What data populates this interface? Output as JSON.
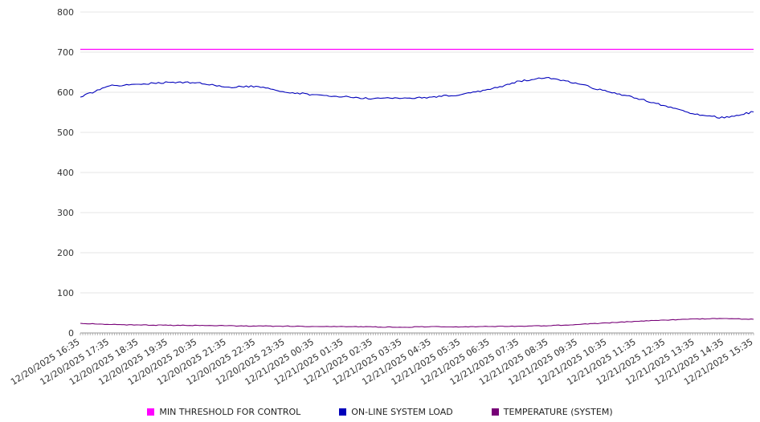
{
  "chart_data": {
    "type": "line",
    "title": "",
    "xlabel": "",
    "ylabel": "",
    "ylim": [
      0,
      800
    ],
    "ytick_step": 100,
    "grid": true,
    "legend_position": "bottom",
    "x_labels": [
      "12/20/2025 16:35",
      "12/20/2025 17:35",
      "12/20/2025 18:35",
      "12/20/2025 19:35",
      "12/20/2025 20:35",
      "12/20/2025 21:35",
      "12/20/2025 22:35",
      "12/20/2025 23:35",
      "12/21/2025 00:35",
      "12/21/2025 01:35",
      "12/21/2025 02:35",
      "12/21/2025 03:35",
      "12/21/2025 04:35",
      "12/21/2025 05:35",
      "12/21/2025 06:35",
      "12/21/2025 07:35",
      "12/21/2025 08:35",
      "12/21/2025 09:35",
      "12/21/2025 10:35",
      "12/21/2025 11:35",
      "12/21/2025 12:35",
      "12/21/2025 13:35",
      "12/21/2025 14:35",
      "12/21/2025 15:35"
    ],
    "series": [
      {
        "name": "MIN THRESHOLD FOR CONTROL",
        "color": "#ff00ff",
        "constant": 707
      },
      {
        "name": "ON-LINE SYSTEM LOAD",
        "color": "#0000bb",
        "values": [
          588,
          616,
          620,
          625,
          624,
          613,
          615,
          600,
          594,
          589,
          584,
          585,
          588,
          594,
          607,
          628,
          637,
          621,
          602,
          585,
          566,
          545,
          536,
          551
        ]
      },
      {
        "name": "TEMPERATURE (SYSTEM)",
        "color": "#770077",
        "values": [
          24,
          21,
          20,
          19,
          19,
          18,
          17,
          17,
          16,
          16,
          15,
          14,
          16,
          15,
          16,
          17,
          18,
          21,
          25,
          29,
          32,
          35,
          36,
          34
        ]
      }
    ]
  }
}
